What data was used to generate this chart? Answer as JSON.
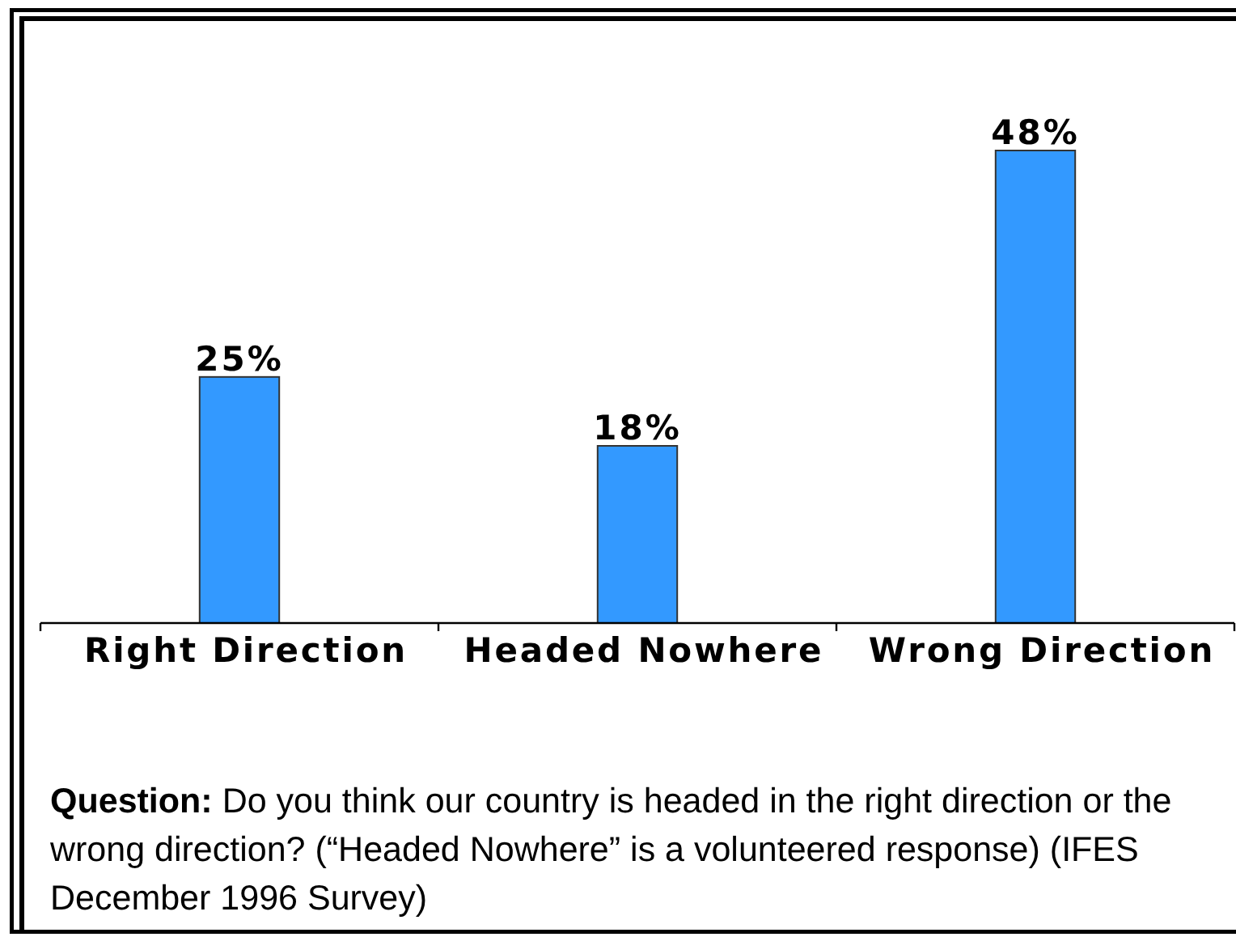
{
  "chart_data": {
    "type": "bar",
    "categories": [
      "Right Direction",
      "Headed Nowhere",
      "Wrong Direction"
    ],
    "values": [
      25,
      18,
      48
    ],
    "value_labels": [
      "25%",
      "18%",
      "48%"
    ],
    "color": "#3399ff",
    "annotations": [
      "Question: Do you think our country is headed in the right direction or the wrong direction? (“Headed Nowhere” is a volunteered response) (IFES December 1996 Survey)"
    ]
  }
}
